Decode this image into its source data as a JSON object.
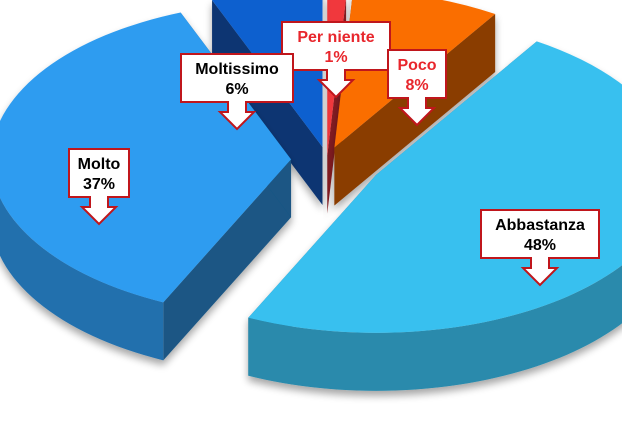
{
  "chart_data": {
    "type": "pie",
    "title": "",
    "legend": "none",
    "slices": [
      {
        "name": "Per niente",
        "value": 1,
        "label": "1%",
        "color": "#f0383c",
        "label_color": "#e8262c"
      },
      {
        "name": "Poco",
        "value": 8,
        "label": "8%",
        "color": "#fa6e06",
        "label_color": "#e8262c"
      },
      {
        "name": "Abbastanza",
        "value": 48,
        "label": "48%",
        "color": "#39c0ef",
        "label_color": "#000000"
      },
      {
        "name": "Molto",
        "value": 37,
        "label": "37%",
        "color": "#2f9cf0",
        "label_color": "#000000"
      },
      {
        "name": "Moltissimo",
        "value": 6,
        "label": "6%",
        "color": "#0f61cf",
        "label_color": "#000000"
      }
    ],
    "callout_border_color": "#c0161c"
  }
}
